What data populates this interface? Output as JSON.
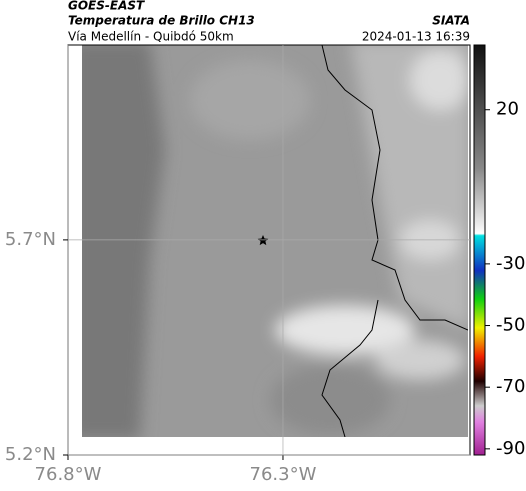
{
  "header": {
    "title": "GOES-EAST",
    "subtitle": "Temperatura de Brillo CH13",
    "location": "Vía Medellín - Quibdó 50km",
    "source": "SIATA",
    "datetime": "2024-01-13 16:39"
  },
  "map": {
    "xlim": [
      -76.8,
      -75.865
    ],
    "ylim": [
      5.2,
      6.153
    ],
    "xticks": [
      {
        "value": -76.8,
        "label": "76.8°W"
      },
      {
        "value": -76.3,
        "label": "76.3°W"
      }
    ],
    "yticks": [
      {
        "value": 5.2,
        "label": "5.2°N"
      },
      {
        "value": 5.7,
        "label": "5.7°N"
      }
    ],
    "grid": true
  },
  "colorbar": {
    "clim": [
      -92,
      41
    ],
    "ticks": [
      20,
      -30,
      -50,
      -70,
      -90
    ]
  }
}
